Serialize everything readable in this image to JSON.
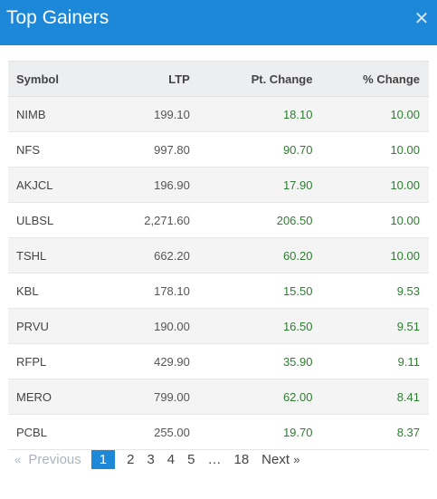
{
  "modal": {
    "title": "Top Gainers",
    "close_icon": "close-icon"
  },
  "table": {
    "headers": {
      "symbol": "Symbol",
      "ltp": "LTP",
      "pt_change": "Pt. Change",
      "pct_change": "% Change"
    },
    "rows": [
      {
        "symbol": "NIMB",
        "ltp": "199.10",
        "pt_change": "18.10",
        "pct_change": "10.00"
      },
      {
        "symbol": "NFS",
        "ltp": "997.80",
        "pt_change": "90.70",
        "pct_change": "10.00"
      },
      {
        "symbol": "AKJCL",
        "ltp": "196.90",
        "pt_change": "17.90",
        "pct_change": "10.00"
      },
      {
        "symbol": "ULBSL",
        "ltp": "2,271.60",
        "pt_change": "206.50",
        "pct_change": "10.00"
      },
      {
        "symbol": "TSHL",
        "ltp": "662.20",
        "pt_change": "60.20",
        "pct_change": "10.00"
      },
      {
        "symbol": "KBL",
        "ltp": "178.10",
        "pt_change": "15.50",
        "pct_change": "9.53"
      },
      {
        "symbol": "PRVU",
        "ltp": "190.00",
        "pt_change": "16.50",
        "pct_change": "9.51"
      },
      {
        "symbol": "RFPL",
        "ltp": "429.90",
        "pt_change": "35.90",
        "pct_change": "9.11"
      },
      {
        "symbol": "MERO",
        "ltp": "799.00",
        "pt_change": "62.00",
        "pct_change": "8.41"
      },
      {
        "symbol": "PCBL",
        "ltp": "255.00",
        "pt_change": "19.70",
        "pct_change": "8.37"
      }
    ]
  },
  "pagination": {
    "prev_arrow": "«",
    "prev_label": "Previous",
    "pages": [
      "1",
      "2",
      "3",
      "4",
      "5"
    ],
    "ellipsis": "…",
    "last_page": "18",
    "next_label": "Next",
    "next_arrow": "»",
    "active_page": "1"
  },
  "colors": {
    "header_bg": "#1e88d8",
    "positive": "#2e7d32",
    "active_page_bg": "#1e88d8"
  }
}
